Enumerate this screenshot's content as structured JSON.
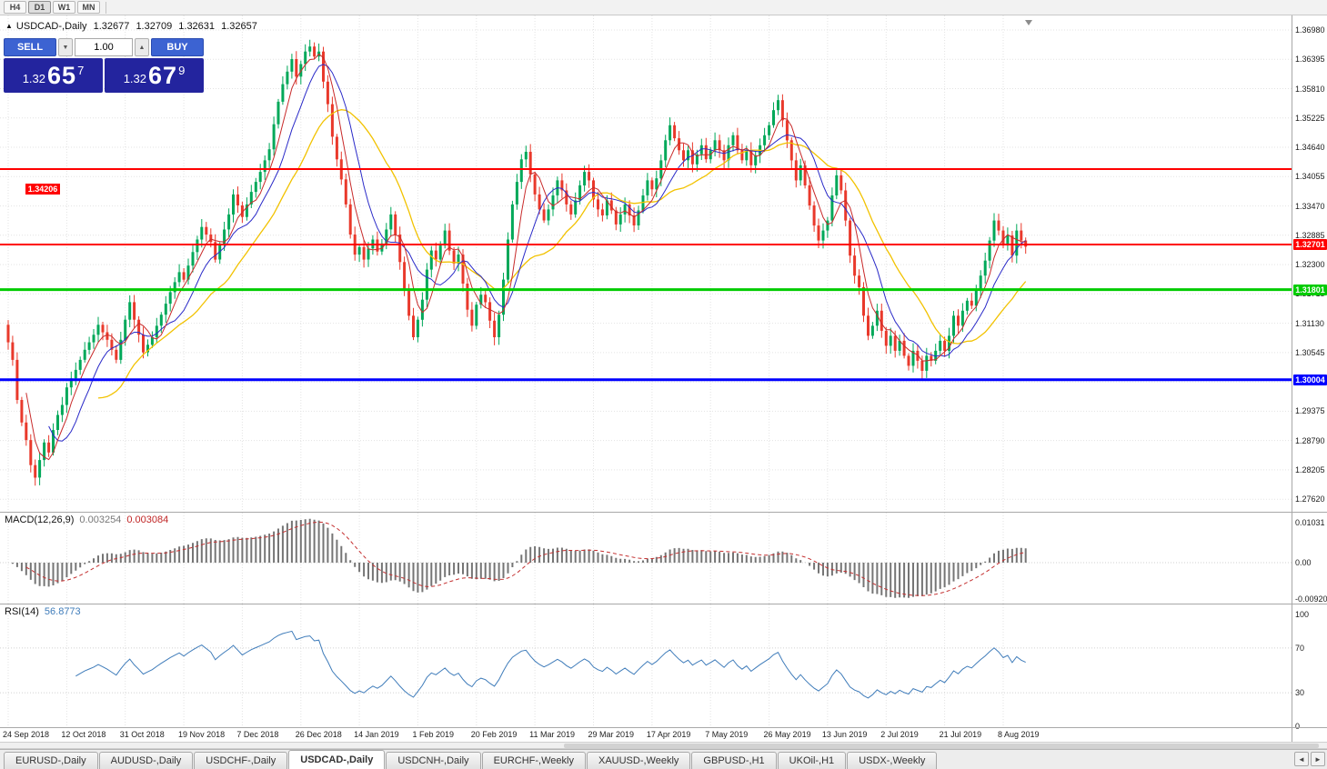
{
  "toolbar": {
    "timeframe_buttons": [
      "H4",
      "D1",
      "W1",
      "MN"
    ],
    "active_timeframe": "D1"
  },
  "quote_header": {
    "marker_icon": "▲",
    "symbol": "USDCAD-,Daily",
    "open": "1.32677",
    "high": "1.32709",
    "low": "1.32631",
    "close": "1.32657"
  },
  "trade_panel": {
    "sell_label": "SELL",
    "buy_label": "BUY",
    "volume": "1.00",
    "volume_down_icon": "▼",
    "volume_up_icon": "▲",
    "sell_price": {
      "prefix": "1.32",
      "big": "65",
      "sup": "7"
    },
    "buy_price": {
      "prefix": "1.32",
      "big": "67",
      "sup": "9"
    }
  },
  "colors": {
    "bull": "#00a859",
    "bear": "#e9392b",
    "grid": "#e3e3e3",
    "ma_fast": "#c82a2a",
    "ma_mid": "#2a2ac8",
    "ma_slow": "#f2c200",
    "macd_hist": "#757575",
    "macd_signal": "#c43030",
    "rsi_line": "#3f7cba",
    "button_blue": "#3c63d2",
    "price_box": "#23249e"
  },
  "chart_data": {
    "type": "candlestick",
    "symbol": "USDCAD",
    "timeframe": "Daily",
    "ohlc_current": {
      "open": 1.32677,
      "high": 1.32709,
      "low": 1.32631,
      "close": 1.32657
    },
    "y_ticks": [
      "1.36980",
      "1.36395",
      "1.35810",
      "1.35225",
      "1.34640",
      "1.34055",
      "1.33470",
      "1.32885",
      "1.32300",
      "1.31715",
      "1.31130",
      "1.30545",
      "1.29960",
      "1.29375",
      "1.28790",
      "1.28205",
      "1.27620"
    ],
    "x_labels": [
      "24 Sep 2018",
      "12 Oct 2018",
      "31 Oct 2018",
      "19 Nov 2018",
      "7 Dec 2018",
      "26 Dec 2018",
      "14 Jan 2019",
      "1 Feb 2019",
      "20 Feb 2019",
      "11 Mar 2019",
      "29 Mar 2019",
      "17 Apr 2019",
      "7 May 2019",
      "26 May 2019",
      "13 Jun 2019",
      "2 Jul 2019",
      "21 Jul 2019",
      "8 Aug 2019"
    ],
    "bars_per_label": 13,
    "first_open": 1.311,
    "closes": [
      1.3075,
      1.304,
      1.296,
      1.2915,
      1.288,
      1.283,
      1.2805,
      1.284,
      1.2875,
      1.2855,
      1.29,
      1.293,
      1.295,
      1.2985,
      1.3003,
      1.302,
      1.304,
      1.306,
      1.3075,
      1.309,
      1.311,
      1.3095,
      1.308,
      1.306,
      1.304,
      1.308,
      1.312,
      1.3155,
      1.312,
      1.309,
      1.3055,
      1.307,
      1.3085,
      1.3108,
      1.313,
      1.3152,
      1.3175,
      1.3195,
      1.3215,
      1.32,
      1.3228,
      1.3255,
      1.328,
      1.3305,
      1.329,
      1.3275,
      1.324,
      1.327,
      1.33,
      1.333,
      1.337,
      1.3348,
      1.3325,
      1.335,
      1.3375,
      1.3395,
      1.3415,
      1.3438,
      1.346,
      1.351,
      1.3555,
      1.359,
      1.3615,
      1.364,
      1.3605,
      1.363,
      1.3655,
      1.3665,
      1.3645,
      1.3655,
      1.3595,
      1.355,
      1.3485,
      1.344,
      1.34,
      1.335,
      1.329,
      1.325,
      1.3265,
      1.324,
      1.3262,
      1.328,
      1.3256,
      1.3272,
      1.33,
      1.333,
      1.329,
      1.3235,
      1.318,
      1.3128,
      1.3085,
      1.312,
      1.316,
      1.322,
      1.3258,
      1.324,
      1.3268,
      1.3298,
      1.3258,
      1.3232,
      1.325,
      1.3192,
      1.314,
      1.3108,
      1.315,
      1.317,
      1.3155,
      1.3118,
      1.3085,
      1.313,
      1.32,
      1.328,
      1.335,
      1.3395,
      1.344,
      1.3455,
      1.341,
      1.337,
      1.334,
      1.3318,
      1.334,
      1.3368,
      1.3398,
      1.3378,
      1.335,
      1.333,
      1.3358,
      1.3388,
      1.3415,
      1.3398,
      1.336,
      1.334,
      1.3328,
      1.3358,
      1.3338,
      1.331,
      1.333,
      1.335,
      1.3328,
      1.3308,
      1.3338,
      1.3368,
      1.3398,
      1.338,
      1.3402,
      1.3438,
      1.3478,
      1.3508,
      1.3482,
      1.3458,
      1.3438,
      1.3458,
      1.343,
      1.345,
      1.3468,
      1.344,
      1.3458,
      1.3478,
      1.3458,
      1.3438,
      1.3468,
      1.3488,
      1.3458,
      1.3438,
      1.3458,
      1.3428,
      1.3448,
      1.3468,
      1.3488,
      1.3508,
      1.3538,
      1.3558,
      1.3518,
      1.3478,
      1.3438,
      1.3398,
      1.3428,
      1.3388,
      1.3348,
      1.3308,
      1.3278,
      1.3298,
      1.3318,
      1.3368,
      1.3408,
      1.3378,
      1.3318,
      1.3248,
      1.3208,
      1.3185,
      1.3128,
      1.3088,
      1.3108,
      1.3138,
      1.3098,
      1.3068,
      1.3088,
      1.3058,
      1.3078,
      1.3048,
      1.3028,
      1.3058,
      1.3038,
      1.3018,
      1.3048,
      1.3038,
      1.3058,
      1.3078,
      1.3058,
      1.3088,
      1.3128,
      1.3108,
      1.3138,
      1.3158,
      1.3148,
      1.3178,
      1.3208,
      1.3238,
      1.3278,
      1.3318,
      1.3298,
      1.3268,
      1.3288,
      1.3248,
      1.3298,
      1.3278,
      1.32657
    ],
    "hlines": [
      {
        "price": 1.34206,
        "label": "1.34206",
        "color": "#ff0000",
        "width": 2,
        "label_side": "left"
      },
      {
        "price": 1.32701,
        "label": "1.32701",
        "color": "#ff0000",
        "width": 2,
        "label_side": "right"
      },
      {
        "price": 1.31801,
        "label": "1.31801",
        "color": "#00cc00",
        "width": 3,
        "label_side": "right"
      },
      {
        "price": 1.30004,
        "label": "1.30004",
        "color": "#0000ff",
        "width": 3,
        "label_side": "right"
      }
    ],
    "moving_averages": [
      {
        "name": "fast",
        "period": 5,
        "color": "#c82a2a"
      },
      {
        "name": "mid",
        "period": 10,
        "color": "#2a2ac8"
      },
      {
        "name": "slow",
        "period": 21,
        "color": "#f2c200"
      }
    ],
    "macd": {
      "label": "MACD(12,26,9)",
      "fast": 12,
      "slow": 26,
      "signal": 9,
      "current_main": "0.003254",
      "current_signal": "0.003084",
      "axis_max": 0.01031,
      "axis_min": -0.0092,
      "axis_labels": [
        "0.01031",
        "0.00",
        "-0.00920"
      ]
    },
    "rsi": {
      "label": "RSI(14)",
      "period": 14,
      "current": "56.8773",
      "levels": [
        70,
        30
      ],
      "axis_values": [
        100,
        70,
        30,
        0
      ],
      "axis_labels": [
        "100",
        "70",
        "30",
        "0"
      ]
    }
  },
  "bottom_tabs": {
    "tabs": [
      "EURUSD-,Daily",
      "AUDUSD-,Daily",
      "USDCHF-,Daily",
      "USDCAD-,Daily",
      "USDCNH-,Daily",
      "EURCHF-,Weekly",
      "XAUUSD-,Weekly",
      "GBPUSD-,H1",
      "UKOil-,H1",
      "USDX-,Weekly"
    ],
    "active": "USDCAD-,Daily",
    "scroll_left_icon": "◄",
    "scroll_right_icon": "►"
  }
}
